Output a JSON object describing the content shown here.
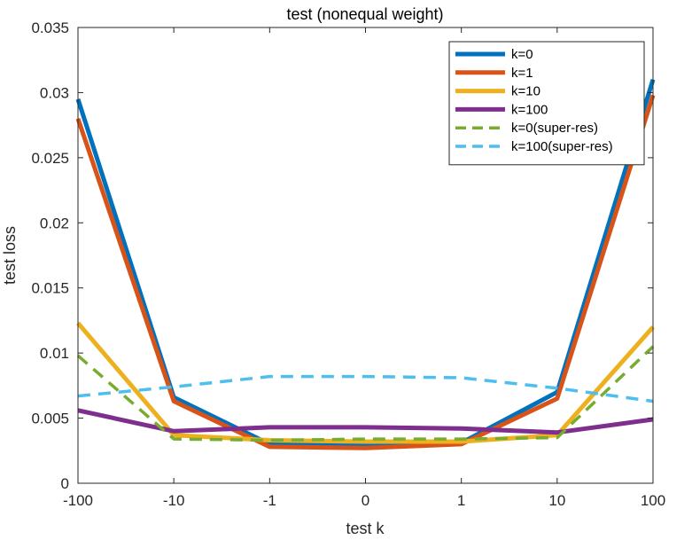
{
  "chart_data": {
    "type": "line",
    "title": "test (nonequal weight)",
    "xlabel": "test k",
    "ylabel": "test loss",
    "categories": [
      "-100",
      "-10",
      "-1",
      "0",
      "1",
      "10",
      "100"
    ],
    "ylim": [
      0,
      0.035
    ],
    "yticks": [
      "0",
      "0.005",
      "0.01",
      "0.015",
      "0.02",
      "0.025",
      "0.03",
      "0.035"
    ],
    "grid": false,
    "legend_position": "top-right",
    "series": [
      {
        "name": "k=0",
        "color": "#0072BD",
        "dash": "solid",
        "values": [
          0.0295,
          0.0066,
          0.003,
          0.0029,
          0.0031,
          0.007,
          0.031
        ]
      },
      {
        "name": "k=1",
        "color": "#D95319",
        "dash": "solid",
        "values": [
          0.028,
          0.0063,
          0.0028,
          0.0027,
          0.003,
          0.0065,
          0.0298
        ]
      },
      {
        "name": "k=10",
        "color": "#EDB120",
        "dash": "solid",
        "values": [
          0.0123,
          0.0037,
          0.0033,
          0.0032,
          0.0032,
          0.0037,
          0.012
        ]
      },
      {
        "name": "k=100",
        "color": "#7E2F8E",
        "dash": "solid",
        "values": [
          0.0056,
          0.004,
          0.0043,
          0.0043,
          0.0042,
          0.0039,
          0.0049
        ]
      },
      {
        "name": "k=0(super-res)",
        "color": "#77AC30",
        "dash": "dashed",
        "values": [
          0.0098,
          0.0034,
          0.0033,
          0.0034,
          0.0034,
          0.0035,
          0.0105
        ]
      },
      {
        "name": "k=100(super-res)",
        "color": "#4DBEEE",
        "dash": "dashed",
        "values": [
          0.0067,
          0.0074,
          0.0082,
          0.0082,
          0.0081,
          0.0073,
          0.0063
        ]
      }
    ]
  }
}
